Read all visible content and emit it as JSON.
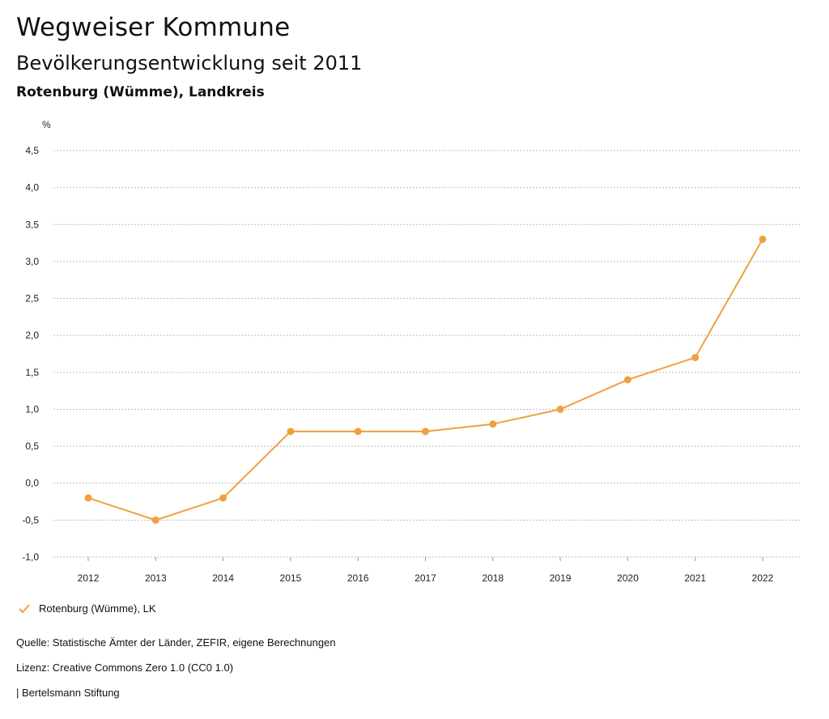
{
  "header": {
    "title": "Wegweiser Kommune",
    "subtitle": "Bevölkerungsentwicklung seit 2011",
    "region": "Rotenburg (Wümme), Landkreis"
  },
  "colors": {
    "series": "#F0A040",
    "grid": "#bbbbbb"
  },
  "chart_data": {
    "type": "line",
    "title": "Bevölkerungsentwicklung seit 2011",
    "xlabel": "",
    "ylabel": "%",
    "x": [
      "2012",
      "2013",
      "2014",
      "2015",
      "2016",
      "2017",
      "2018",
      "2019",
      "2020",
      "2021",
      "2022"
    ],
    "series": [
      {
        "name": "Rotenburg (Wümme), LK",
        "values": [
          -0.2,
          -0.5,
          -0.2,
          0.7,
          0.7,
          0.7,
          0.8,
          1.0,
          1.4,
          1.7,
          3.3
        ]
      }
    ],
    "ylim": [
      -1.0,
      4.5
    ],
    "yticks": [
      "4,5",
      "4,0",
      "3,5",
      "3,0",
      "2,5",
      "2,0",
      "1,5",
      "1,0",
      "0,5",
      "0,0",
      "-0,5",
      "-1,0"
    ],
    "ytick_values": [
      4.5,
      4.0,
      3.5,
      3.0,
      2.5,
      2.0,
      1.5,
      1.0,
      0.5,
      0.0,
      -0.5,
      -1.0
    ],
    "grid": true,
    "legend": "bottom-left"
  },
  "legend": {
    "label": "Rotenburg (Wümme), LK"
  },
  "footer": {
    "source": "Quelle: Statistische Ämter der Länder, ZEFIR, eigene Berechnungen",
    "license": "Lizenz: Creative Commons Zero 1.0 (CC0 1.0)",
    "brand": "| Bertelsmann Stiftung"
  }
}
